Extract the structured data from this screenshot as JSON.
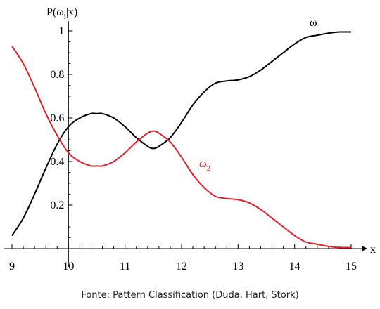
{
  "caption": "Fonte: Pattern Classification (Duda, Hart, Stork)",
  "colors": {
    "omega1": "#000000",
    "omega2": "#e0202a",
    "axis": "#000000"
  },
  "chart_data": {
    "type": "line",
    "title": "",
    "ylabel": {
      "base": "P(ω",
      "sub": "i",
      "rest": "|x)"
    },
    "xlabel": "x",
    "xlim": [
      9,
      15
    ],
    "ylim": [
      0,
      1
    ],
    "x_ticks": [
      "9",
      "10",
      "11",
      "12",
      "13",
      "14",
      "15"
    ],
    "y_ticks": [
      "0.2",
      "0.4",
      "0.6",
      "0.8",
      "1"
    ],
    "series": [
      {
        "key": "omega1",
        "name": "ω1",
        "label": {
          "base": "ω",
          "sub": "1"
        },
        "color": "#000000",
        "x": [
          9.0,
          9.2,
          9.4,
          9.6,
          9.8,
          10.0,
          10.2,
          10.4,
          10.5,
          10.6,
          10.8,
          11.0,
          11.2,
          11.4,
          11.5,
          11.6,
          11.8,
          12.0,
          12.2,
          12.4,
          12.6,
          12.8,
          13.0,
          13.2,
          13.4,
          13.6,
          13.8,
          14.0,
          14.2,
          14.4,
          14.6,
          14.8,
          15.0
        ],
        "y": [
          0.06,
          0.14,
          0.25,
          0.37,
          0.48,
          0.56,
          0.6,
          0.62,
          0.62,
          0.62,
          0.6,
          0.56,
          0.51,
          0.47,
          0.46,
          0.47,
          0.51,
          0.58,
          0.66,
          0.72,
          0.76,
          0.77,
          0.775,
          0.79,
          0.82,
          0.86,
          0.9,
          0.94,
          0.97,
          0.98,
          0.99,
          0.995,
          0.995
        ]
      },
      {
        "key": "omega2",
        "name": "ω2",
        "label": {
          "base": "ω",
          "sub": "2"
        },
        "color": "#e0202a",
        "x": [
          9.0,
          9.2,
          9.4,
          9.6,
          9.8,
          10.0,
          10.2,
          10.4,
          10.5,
          10.6,
          10.8,
          11.0,
          11.2,
          11.4,
          11.5,
          11.6,
          11.8,
          12.0,
          12.2,
          12.4,
          12.6,
          12.8,
          13.0,
          13.2,
          13.4,
          13.6,
          13.8,
          14.0,
          14.2,
          14.4,
          14.6,
          14.8,
          15.0
        ],
        "y": [
          0.93,
          0.85,
          0.74,
          0.62,
          0.52,
          0.44,
          0.4,
          0.38,
          0.38,
          0.38,
          0.4,
          0.44,
          0.49,
          0.53,
          0.54,
          0.53,
          0.49,
          0.42,
          0.34,
          0.28,
          0.24,
          0.23,
          0.225,
          0.21,
          0.18,
          0.14,
          0.1,
          0.06,
          0.03,
          0.02,
          0.01,
          0.005,
          0.005
        ]
      }
    ]
  }
}
